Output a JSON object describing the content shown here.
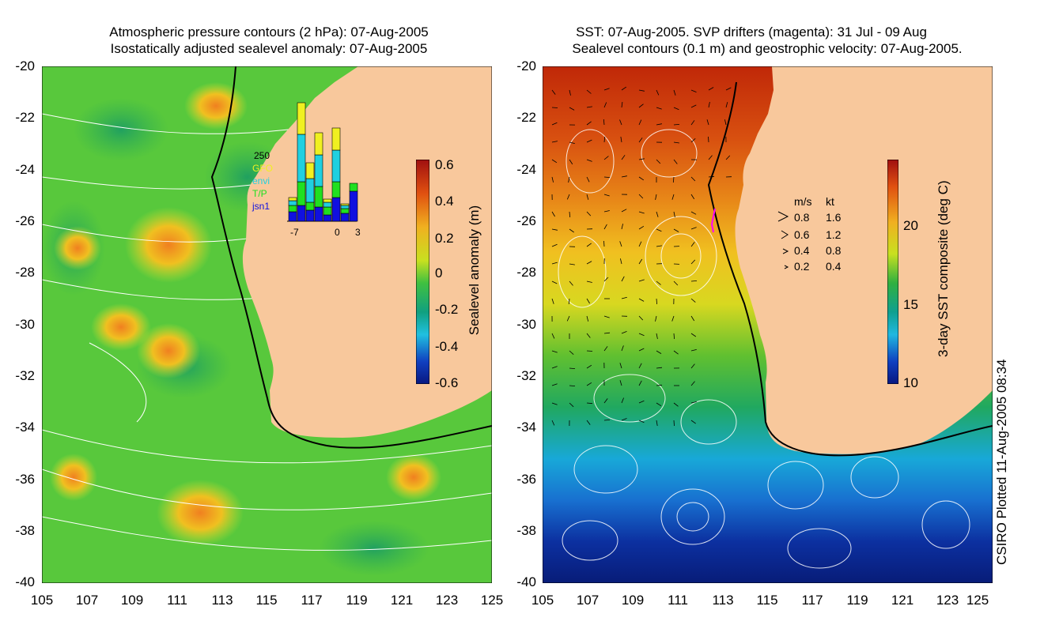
{
  "left_panel": {
    "title_line1": "Atmospheric pressure contours (2 hPa): 07-Aug-2005",
    "title_line2": "Isostatically adjusted sealevel anomaly: 07-Aug-2005",
    "colorbar": {
      "label": "Sealevel anomaly (m)",
      "ticks": [
        "0.6",
        "0.4",
        "0.2",
        "0",
        "-0.2",
        "-0.4",
        "-0.6"
      ],
      "range": [
        -0.6,
        0.6
      ]
    },
    "inset": {
      "top_label": "250",
      "legend": [
        {
          "name": "GFO",
          "color": "#f0f020"
        },
        {
          "name": "envi",
          "color": "#20d0e0"
        },
        {
          "name": "T/P",
          "color": "#20e020"
        },
        {
          "name": "jsn1",
          "color": "#1010e0"
        }
      ],
      "x_ticks": [
        "-7",
        "0",
        "3"
      ]
    }
  },
  "right_panel": {
    "title_line1": "SST: 07-Aug-2005. SVP drifters (magenta): 31 Jul - 09 Aug",
    "title_line2": "Sealevel contours (0.1 m) and geostrophic velocity: 07-Aug-2005.",
    "colorbar": {
      "label": "3-day SST composite (deg C)",
      "ticks": [
        "20",
        "15",
        "10"
      ],
      "range": [
        10,
        23
      ]
    },
    "velocity_key": {
      "header_ms": "m/s",
      "header_kt": "kt",
      "rows": [
        {
          "ms": "0.8",
          "kt": "1.6"
        },
        {
          "ms": "0.6",
          "kt": "1.2"
        },
        {
          "ms": "0.4",
          "kt": "0.8"
        },
        {
          "ms": "0.2",
          "kt": "0.4"
        }
      ]
    }
  },
  "axes": {
    "latitude_ticks": [
      "-20",
      "-22",
      "-24",
      "-26",
      "-28",
      "-30",
      "-32",
      "-34",
      "-36",
      "-38",
      "-40"
    ],
    "longitude_ticks": [
      "105",
      "107",
      "109",
      "111",
      "113",
      "115",
      "117",
      "119",
      "121",
      "123",
      "125"
    ]
  },
  "credit": "CSIRO Plotted 11-Aug-2005 08:34",
  "colors": {
    "land": "#f8c89c",
    "coastline": "#000000",
    "contour": "#ffffff",
    "drifter": "#ff00ff"
  }
}
